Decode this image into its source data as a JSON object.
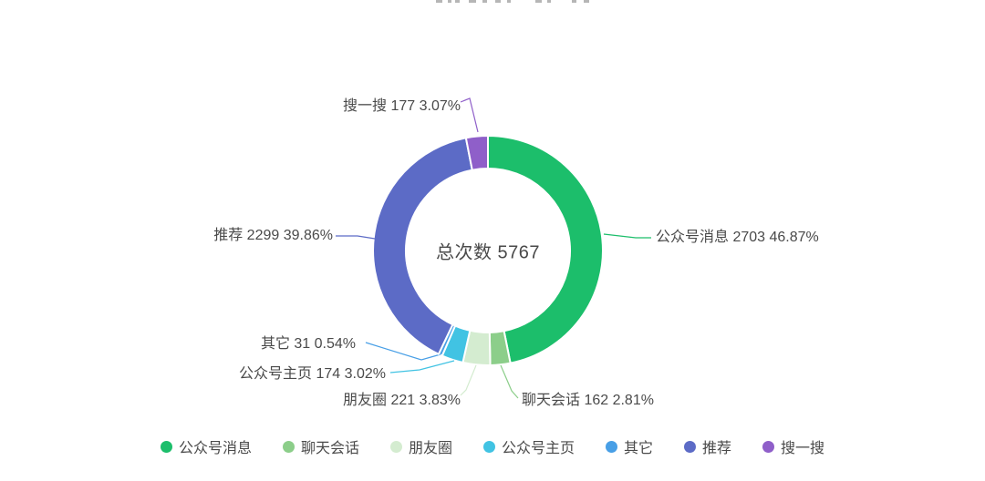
{
  "chart_data": {
    "type": "pie",
    "variant": "donut",
    "title": "",
    "center_label": {
      "prefix": "总次数",
      "value": "5767"
    },
    "total": 5767,
    "label_format": "{name} {value} {percent}",
    "series": [
      {
        "name": "公众号消息",
        "value": 2703,
        "percent": "46.87%",
        "color": "#1CBE6B"
      },
      {
        "name": "聊天会话",
        "value": 162,
        "percent": "2.81%",
        "color": "#8CCE8A"
      },
      {
        "name": "朋友圈",
        "value": 221,
        "percent": "3.83%",
        "color": "#D4ECD0"
      },
      {
        "name": "公众号主页",
        "value": 174,
        "percent": "3.02%",
        "color": "#41C3E3"
      },
      {
        "name": "其它",
        "value": 31,
        "percent": "0.54%",
        "color": "#489FE6"
      },
      {
        "name": "推荐",
        "value": 2299,
        "percent": "39.86%",
        "color": "#5C6BC6"
      },
      {
        "name": "搜一搜",
        "value": 177,
        "percent": "3.07%",
        "color": "#8F5FC9"
      }
    ],
    "legend": [
      "公众号消息",
      "聊天会话",
      "朋友圈",
      "公众号主页",
      "其它",
      "推荐",
      "搜一搜"
    ],
    "legend_position": "bottom",
    "background": "#ffffff",
    "slice_border_color": "#ffffff"
  }
}
